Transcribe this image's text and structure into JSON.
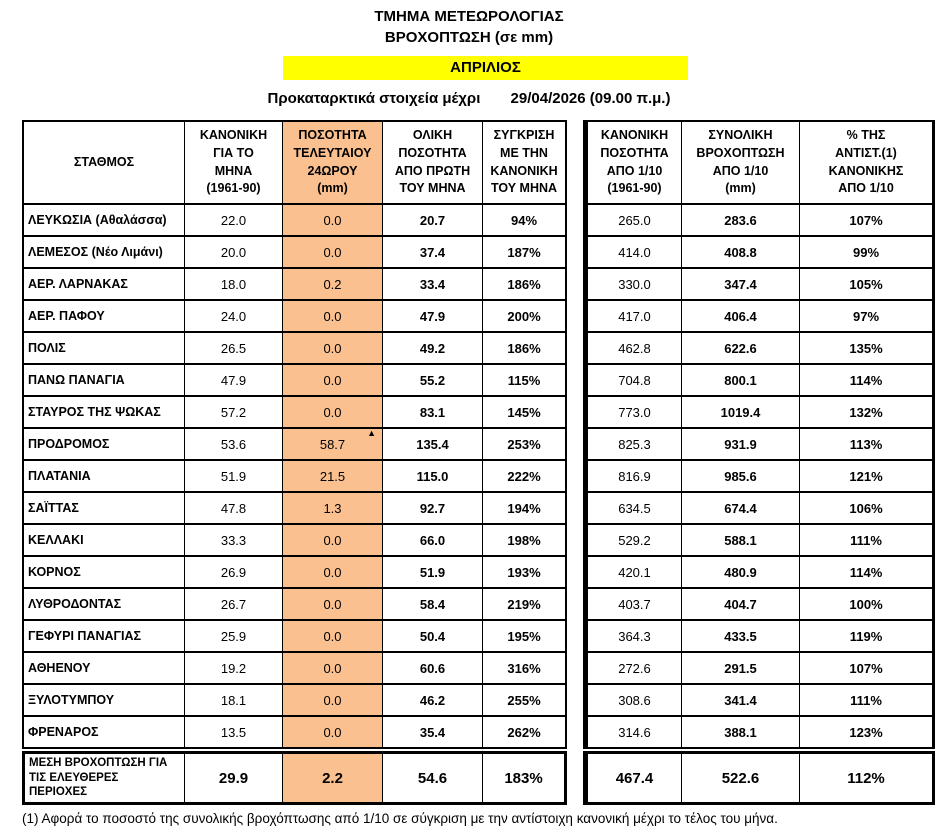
{
  "header": {
    "title": "ΤΜΗΜΑ ΜΕΤΕΩΡΟΛΟΓΙΑΣ",
    "subtitle": "ΒΡΟΧΟΠΤΩΣΗ (σε mm)",
    "month": "ΑΠΡΙΛΙΟΣ",
    "preliminary_label": "Προκαταρκτικά στοιχεία μέχρι",
    "preliminary_datetime": "29/04/2026 (09.00 π.μ.)"
  },
  "colors": {
    "highlight_yellow": "#FFFF00",
    "column_orange": "#FAC090"
  },
  "table": {
    "columns": [
      {
        "key": "station",
        "label": "ΣΤΑΘΜΟΣ"
      },
      {
        "key": "normal_month",
        "label": "ΚΑΝΟΝΙΚΗ\nΓΙΑ ΤΟ\nΜΗΝΑ\n(1961-90)"
      },
      {
        "key": "last_24h",
        "label": "ΠΟΣΟΤΗΤΑ\nΤΕΛΕΥΤΑΙΟΥ\n24ΩΡΟΥ\n(mm)"
      },
      {
        "key": "total_month",
        "label": "ΟΛΙΚΗ\nΠΟΣΟΤΗΤΑ\nΑΠΟ ΠΡΩΤΗ\nΤΟΥ ΜΗΝΑ"
      },
      {
        "key": "vs_normal_month",
        "label": "ΣΥΓΚΡΙΣΗ\nΜΕ ΤΗΝ\nΚΑΝΟΝΙΚΗ\nΤΟΥ ΜΗΝΑ"
      },
      {
        "key": "normal_from_oct",
        "label": "ΚΑΝΟΝΙΚΗ\nΠΟΣΟΤΗΤΑ\nΑΠΟ 1/10\n(1961-90)"
      },
      {
        "key": "total_from_oct",
        "label": "ΣΥΝΟΛΙΚΗ\nΒΡΟΧΟΠΤΩΣΗ\nΑΠΟ 1/10\n(mm)"
      },
      {
        "key": "pct_normal_from_oct",
        "label": "% ΤΗΣ\nΑΝΤΙΣΤ.(1)\nΚΑΝΟΝΙΚΗΣ\nΑΠΟ 1/10"
      }
    ],
    "rows": [
      {
        "station": "ΛΕΥΚΩΣΙΑ (Αθαλάσσα)",
        "values": [
          "22.0",
          "0.0",
          "20.7",
          "94%",
          "265.0",
          "283.6",
          "107%"
        ]
      },
      {
        "station": "ΛΕΜΕΣΟΣ (Νέο Λιμάνι)",
        "values": [
          "20.0",
          "0.0",
          "37.4",
          "187%",
          "414.0",
          "408.8",
          "99%"
        ]
      },
      {
        "station": "ΑΕΡ. ΛΑΡΝΑΚΑΣ",
        "values": [
          "18.0",
          "0.2",
          "33.4",
          "186%",
          "330.0",
          "347.4",
          "105%"
        ]
      },
      {
        "station": "ΑΕΡ.  ΠΑΦΟΥ",
        "values": [
          "24.0",
          "0.0",
          "47.9",
          "200%",
          "417.0",
          "406.4",
          "97%"
        ]
      },
      {
        "station": "ΠΟΛΙΣ",
        "values": [
          "26.5",
          "0.0",
          "49.2",
          "186%",
          "462.8",
          "622.6",
          "135%"
        ]
      },
      {
        "station": "ΠΑΝΩ ΠΑΝΑΓΙΑ",
        "values": [
          "47.9",
          "0.0",
          "55.2",
          "115%",
          "704.8",
          "800.1",
          "114%"
        ]
      },
      {
        "station": "ΣΤΑΥΡΟΣ ΤΗΣ ΨΩΚΑΣ",
        "values": [
          "57.2",
          "0.0",
          "83.1",
          "145%",
          "773.0",
          "1019.4",
          "132%"
        ]
      },
      {
        "station": "ΠΡΟΔΡΟΜΟΣ",
        "values": [
          "53.6",
          "58.7",
          "135.4",
          "253%",
          "825.3",
          "931.9",
          "113%"
        ],
        "marker": "▲"
      },
      {
        "station": "ΠΛΑΤΑΝΙΑ",
        "values": [
          "51.9",
          "21.5",
          "115.0",
          "222%",
          "816.9",
          "985.6",
          "121%"
        ]
      },
      {
        "station": "ΣΑΪΤΤΑΣ",
        "values": [
          "47.8",
          "1.3",
          "92.7",
          "194%",
          "634.5",
          "674.4",
          "106%"
        ]
      },
      {
        "station": "ΚΕΛΛΑΚΙ",
        "values": [
          "33.3",
          "0.0",
          "66.0",
          "198%",
          "529.2",
          "588.1",
          "111%"
        ]
      },
      {
        "station": "ΚΟΡΝΟΣ",
        "values": [
          "26.9",
          "0.0",
          "51.9",
          "193%",
          "420.1",
          "480.9",
          "114%"
        ]
      },
      {
        "station": "ΛΥΘΡΟΔΟΝΤΑΣ",
        "values": [
          "26.7",
          "0.0",
          "58.4",
          "219%",
          "403.7",
          "404.7",
          "100%"
        ]
      },
      {
        "station": "ΓΕΦΥΡΙ ΠΑΝΑΓΙΑΣ",
        "values": [
          "25.9",
          "0.0",
          "50.4",
          "195%",
          "364.3",
          "433.5",
          "119%"
        ]
      },
      {
        "station": "ΑΘΗΕΝΟΥ",
        "values": [
          "19.2",
          "0.0",
          "60.6",
          "316%",
          "272.6",
          "291.5",
          "107%"
        ]
      },
      {
        "station": "ΞΥΛΟΤΥΜΠΟΥ",
        "values": [
          "18.1",
          "0.0",
          "46.2",
          "255%",
          "308.6",
          "341.4",
          "111%"
        ]
      },
      {
        "station": "ΦΡΕΝΑΡΟΣ",
        "values": [
          "13.5",
          "0.0",
          "35.4",
          "262%",
          "314.6",
          "388.1",
          "123%"
        ]
      }
    ],
    "summary": {
      "label": "ΜΕΣΗ ΒΡΟΧΟΠΤΩΣΗ ΓΙΑ\nΤΙΣ ΕΛΕΥΘΕΡΕΣ\nΠΕΡΙΟΧΕΣ",
      "values": [
        "29.9",
        "2.2",
        "54.6",
        "183%",
        "467.4",
        "522.6",
        "112%"
      ]
    }
  },
  "footnote": "(1) Αφορά το ποσοστό της συνολικής βροχόπτωσης από  1/10 σε σύγκριση με την αντίστοιχη κανονική  μέχρι το τέλος του μήνα."
}
